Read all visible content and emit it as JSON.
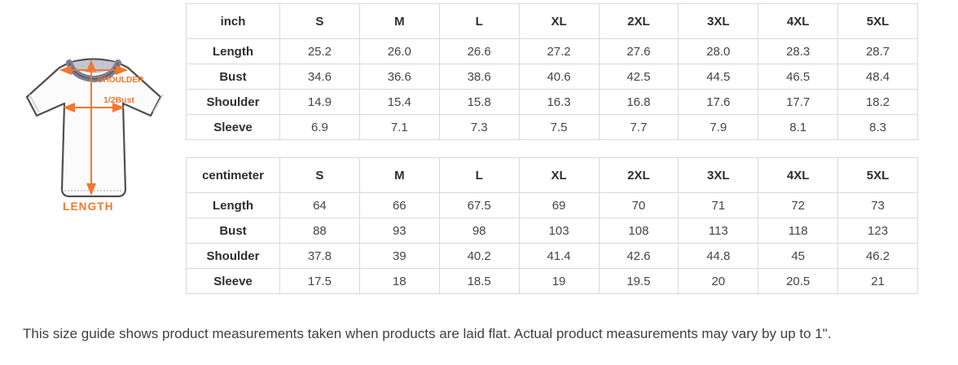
{
  "figure": {
    "accent_color": "#F4772E",
    "labels": {
      "shoulder": "SHOULDER",
      "half_bust": "1/2Bust",
      "length": "LENGTH"
    }
  },
  "tables": [
    {
      "unit_label": "inch",
      "sizes": [
        "S",
        "M",
        "L",
        "XL",
        "2XL",
        "3XL",
        "4XL",
        "5XL"
      ],
      "rows": [
        {
          "label": "Length",
          "values": [
            "25.2",
            "26.0",
            "26.6",
            "27.2",
            "27.6",
            "28.0",
            "28.3",
            "28.7"
          ]
        },
        {
          "label": "Bust",
          "values": [
            "34.6",
            "36.6",
            "38.6",
            "40.6",
            "42.5",
            "44.5",
            "46.5",
            "48.4"
          ]
        },
        {
          "label": "Shoulder",
          "values": [
            "14.9",
            "15.4",
            "15.8",
            "16.3",
            "16.8",
            "17.6",
            "17.7",
            "18.2"
          ]
        },
        {
          "label": "Sleeve",
          "values": [
            "6.9",
            "7.1",
            "7.3",
            "7.5",
            "7.7",
            "7.9",
            "8.1",
            "8.3"
          ]
        }
      ]
    },
    {
      "unit_label": "centimeter",
      "sizes": [
        "S",
        "M",
        "L",
        "XL",
        "2XL",
        "3XL",
        "4XL",
        "5XL"
      ],
      "rows": [
        {
          "label": "Length",
          "values": [
            "64",
            "66",
            "67.5",
            "69",
            "70",
            "71",
            "72",
            "73"
          ]
        },
        {
          "label": "Bust",
          "values": [
            "88",
            "93",
            "98",
            "103",
            "108",
            "113",
            "118",
            "123"
          ]
        },
        {
          "label": "Shoulder",
          "values": [
            "37.8",
            "39",
            "40.2",
            "41.4",
            "42.6",
            "44.8",
            "45",
            "46.2"
          ]
        },
        {
          "label": "Sleeve",
          "values": [
            "17.5",
            "18",
            "18.5",
            "19",
            "19.5",
            "20",
            "20.5",
            "21"
          ]
        }
      ]
    }
  ],
  "footer": {
    "note": "This size guide shows product measurements taken when products are laid flat. Actual product measurements may vary by up to 1\"."
  }
}
